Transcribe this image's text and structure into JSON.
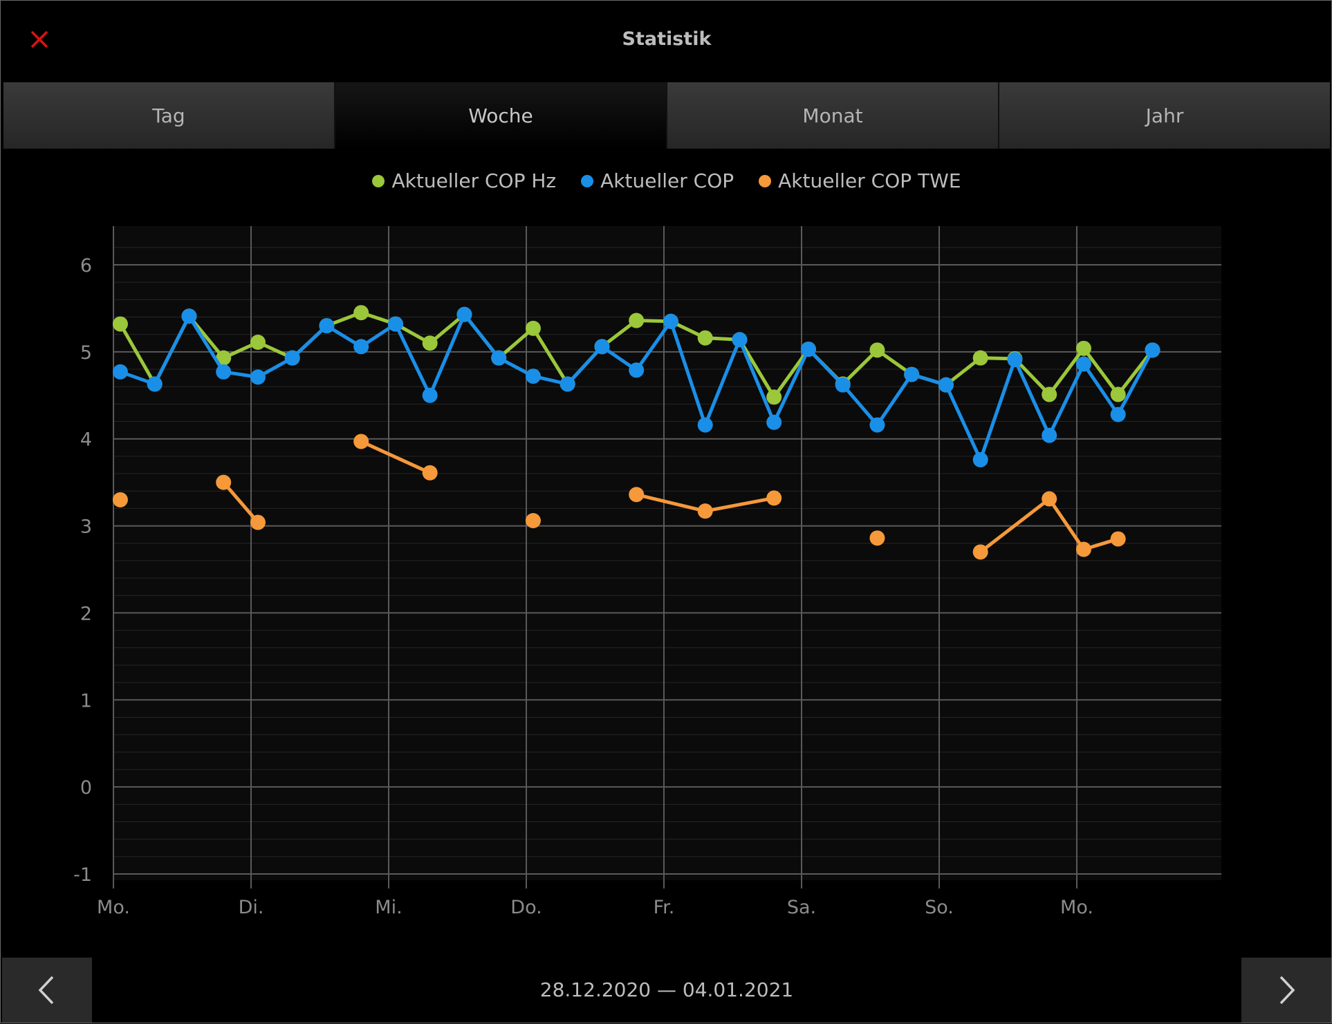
{
  "header": {
    "title": "Statistik",
    "close_icon": "close-icon"
  },
  "tabs": [
    {
      "label": "Tag",
      "active": false
    },
    {
      "label": "Woche",
      "active": true
    },
    {
      "label": "Monat",
      "active": false
    },
    {
      "label": "Jahr",
      "active": false
    }
  ],
  "footer": {
    "date_range": "28.12.2020 — 04.01.2021",
    "prev_icon": "chevron-left-icon",
    "next_icon": "chevron-right-icon"
  },
  "colors": {
    "cop_hz": "#9bc73a",
    "cop": "#1a8fe8",
    "cop_twe": "#f5993a",
    "close": "#e01010"
  },
  "chart_data": {
    "type": "line",
    "ylim": [
      -1,
      6.5
    ],
    "yticks": [
      -1,
      0,
      1,
      2,
      3,
      4,
      5,
      6
    ],
    "x_tick_labels": [
      "Mo.",
      "Di.",
      "Mi.",
      "Do.",
      "Fr.",
      "Sa.",
      "So.",
      "Mo."
    ],
    "grid": true,
    "legend_position": "top-center",
    "series": [
      {
        "name": "Aktueller COP Hz",
        "color": "#9bc73a",
        "points": [
          [
            0.05,
            5.32
          ],
          [
            0.3,
            4.63
          ],
          [
            0.55,
            5.41
          ],
          [
            0.8,
            4.93
          ],
          [
            1.05,
            5.11
          ],
          [
            1.3,
            4.93
          ],
          [
            1.55,
            5.3
          ],
          [
            1.8,
            5.45
          ],
          [
            2.05,
            5.32
          ],
          [
            2.3,
            5.1
          ],
          [
            2.55,
            5.43
          ],
          [
            2.8,
            4.93
          ],
          [
            3.05,
            5.27
          ],
          [
            3.3,
            4.63
          ],
          [
            3.55,
            5.06
          ],
          [
            3.8,
            5.36
          ],
          [
            4.05,
            5.35
          ],
          [
            4.3,
            5.16
          ],
          [
            4.55,
            5.14
          ],
          [
            4.8,
            4.48
          ],
          [
            5.05,
            5.03
          ],
          [
            5.3,
            4.63
          ],
          [
            5.55,
            5.02
          ],
          [
            5.8,
            4.74
          ],
          [
            6.05,
            4.62
          ],
          [
            6.3,
            4.93
          ],
          [
            6.55,
            4.92
          ],
          [
            6.8,
            4.51
          ],
          [
            7.05,
            5.04
          ],
          [
            7.3,
            4.51
          ],
          [
            7.55,
            5.02
          ]
        ]
      },
      {
        "name": "Aktueller COP",
        "color": "#1a8fe8",
        "points": [
          [
            0.05,
            4.77
          ],
          [
            0.3,
            4.63
          ],
          [
            0.55,
            5.41
          ],
          [
            0.8,
            4.77
          ],
          [
            1.05,
            4.71
          ],
          [
            1.3,
            4.93
          ],
          [
            1.55,
            5.3
          ],
          [
            1.8,
            5.06
          ],
          [
            2.05,
            5.32
          ],
          [
            2.3,
            4.5
          ],
          [
            2.55,
            5.43
          ],
          [
            2.8,
            4.93
          ],
          [
            3.05,
            4.72
          ],
          [
            3.3,
            4.63
          ],
          [
            3.55,
            5.06
          ],
          [
            3.8,
            4.79
          ],
          [
            4.05,
            5.35
          ],
          [
            4.3,
            4.16
          ],
          [
            4.55,
            5.14
          ],
          [
            4.8,
            4.19
          ],
          [
            5.05,
            5.03
          ],
          [
            5.3,
            4.62
          ],
          [
            5.55,
            4.16
          ],
          [
            5.8,
            4.74
          ],
          [
            6.05,
            4.62
          ],
          [
            6.3,
            3.76
          ],
          [
            6.55,
            4.91
          ],
          [
            6.8,
            4.04
          ],
          [
            7.05,
            4.86
          ],
          [
            7.3,
            4.28
          ],
          [
            7.55,
            5.02
          ]
        ]
      },
      {
        "name": "Aktueller COP TWE",
        "color": "#f5993a",
        "points": [
          [
            0.05,
            3.3
          ],
          [
            0.8,
            3.5
          ],
          [
            1.05,
            3.04
          ],
          [
            1.8,
            3.97
          ],
          [
            2.3,
            3.61
          ],
          [
            3.05,
            3.06
          ],
          [
            3.8,
            3.36
          ],
          [
            4.3,
            3.17
          ],
          [
            4.8,
            3.32
          ],
          [
            5.55,
            2.86
          ],
          [
            6.3,
            2.7
          ],
          [
            6.8,
            3.31
          ],
          [
            7.05,
            2.73
          ],
          [
            7.3,
            2.85
          ]
        ],
        "segments": [
          [
            0
          ],
          [
            1,
            2
          ],
          [
            3,
            4
          ],
          [
            5
          ],
          [
            6,
            7,
            8
          ],
          [
            9
          ],
          [
            10,
            11,
            12,
            13
          ]
        ]
      }
    ]
  }
}
